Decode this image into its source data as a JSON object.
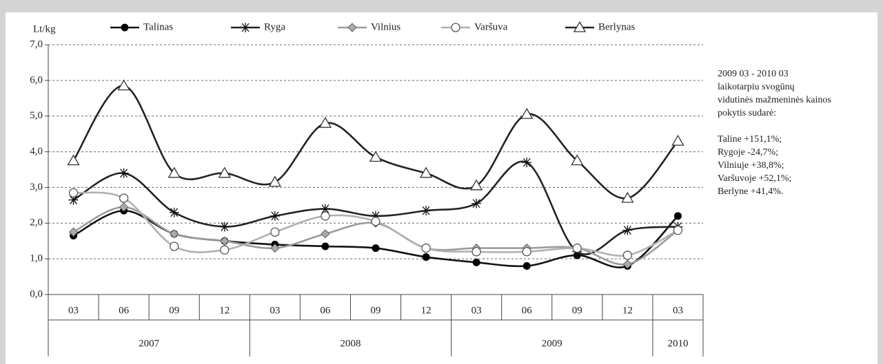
{
  "chart_data": {
    "type": "line",
    "y_label": "Lt/kg",
    "categories": [
      "03",
      "06",
      "09",
      "12",
      "03",
      "06",
      "09",
      "12",
      "03",
      "06",
      "09",
      "12",
      "03"
    ],
    "x_groups": [
      {
        "name": "2007",
        "span": 4
      },
      {
        "name": "2008",
        "span": 4
      },
      {
        "name": "2009",
        "span": 4
      },
      {
        "name": "2010",
        "span": 1
      }
    ],
    "ylim": [
      0,
      7
    ],
    "yticks": [
      {
        "value": 0,
        "label": "0,0"
      },
      {
        "value": 1,
        "label": "1,0"
      },
      {
        "value": 2,
        "label": "2,0"
      },
      {
        "value": 3,
        "label": "3,0"
      },
      {
        "value": 4,
        "label": "4,0"
      },
      {
        "value": 5,
        "label": "5,0"
      },
      {
        "value": 6,
        "label": "6,0"
      },
      {
        "value": 7,
        "label": "7,0"
      }
    ],
    "grid": true,
    "legend": "top",
    "series": [
      {
        "name": "Talinas",
        "color": "#111111",
        "marker": "filled-circle",
        "values": [
          1.65,
          2.35,
          1.7,
          1.5,
          1.4,
          1.35,
          1.3,
          1.05,
          0.9,
          0.8,
          1.1,
          0.8,
          2.2
        ]
      },
      {
        "name": "Ryga",
        "color": "#222222",
        "marker": "asterisk",
        "values": [
          2.65,
          3.4,
          2.3,
          1.9,
          2.2,
          2.4,
          2.2,
          2.35,
          2.55,
          3.7,
          1.2,
          1.8,
          1.9
        ]
      },
      {
        "name": "Vilnius",
        "color": "#9a9a9a",
        "marker": "diamond",
        "values": [
          1.75,
          2.45,
          1.7,
          1.5,
          1.3,
          1.7,
          2.0,
          1.3,
          1.3,
          1.3,
          1.3,
          0.85,
          1.8
        ]
      },
      {
        "name": "Varšuva",
        "color": "#b0b0b0",
        "marker": "open-circle",
        "values": [
          2.85,
          2.7,
          1.35,
          1.25,
          1.75,
          2.2,
          2.05,
          1.3,
          1.2,
          1.2,
          1.3,
          1.1,
          1.8
        ]
      },
      {
        "name": "Berlynas",
        "color": "#222222",
        "marker": "triangle",
        "values": [
          3.75,
          5.85,
          3.4,
          3.4,
          3.15,
          4.8,
          3.85,
          3.4,
          3.05,
          5.05,
          3.75,
          2.7,
          4.3
        ]
      }
    ],
    "annotation": [
      "2009 03 - 2010 03",
      "laikotarpiu svogūnų",
      "vidutinės mažmeninės kainos",
      "pokytis sudarė:",
      "Taline +151,1%;",
      "Rygoje -24,7%;",
      "Vilniuje  +38,8%;",
      "Varšuvoje +52,1%;",
      "Berlyne +41,4%."
    ]
  }
}
